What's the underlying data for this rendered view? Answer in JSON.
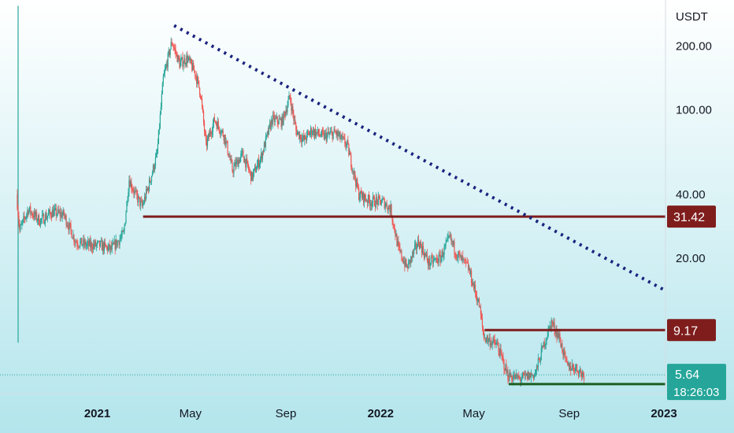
{
  "chart_data": {
    "type": "candlestick",
    "title": "",
    "currency": "USDT",
    "y_scale": "log",
    "ylim": [
      4.6,
      330
    ],
    "xlim": [
      "2020-09-20",
      "2023-01-03"
    ],
    "y_ticks": [
      {
        "value": 200,
        "label": "200.00"
      },
      {
        "value": 100,
        "label": "100.00"
      },
      {
        "value": 40,
        "label": "40.00"
      },
      {
        "value": 20,
        "label": "20.00"
      }
    ],
    "x_ticks": [
      {
        "date": "2021-01-01",
        "label": "2021",
        "bold": true
      },
      {
        "date": "2021-05-01",
        "label": "May",
        "bold": false
      },
      {
        "date": "2021-09-01",
        "label": "Sep",
        "bold": false
      },
      {
        "date": "2022-01-01",
        "label": "2022",
        "bold": true
      },
      {
        "date": "2022-05-01",
        "label": "May",
        "bold": false
      },
      {
        "date": "2022-09-01",
        "label": "Sep",
        "bold": false
      },
      {
        "date": "2023-01-01",
        "label": "2023",
        "bold": true
      }
    ],
    "price_path": [
      [
        "2020-09-20",
        40
      ],
      [
        "2020-09-24",
        27
      ],
      [
        "2020-10-05",
        34
      ],
      [
        "2020-10-20",
        30
      ],
      [
        "2020-11-05",
        33
      ],
      [
        "2020-11-20",
        32
      ],
      [
        "2020-12-05",
        24
      ],
      [
        "2020-12-20",
        23
      ],
      [
        "2021-01-05",
        23
      ],
      [
        "2021-01-20",
        22
      ],
      [
        "2021-02-05",
        26
      ],
      [
        "2021-02-12",
        47
      ],
      [
        "2021-02-20",
        40
      ],
      [
        "2021-03-01",
        35
      ],
      [
        "2021-03-10",
        45
      ],
      [
        "2021-03-20",
        62
      ],
      [
        "2021-03-28",
        140
      ],
      [
        "2021-04-08",
        210
      ],
      [
        "2021-04-18",
        165
      ],
      [
        "2021-04-28",
        175
      ],
      [
        "2021-05-08",
        150
      ],
      [
        "2021-05-15",
        120
      ],
      [
        "2021-05-22",
        68
      ],
      [
        "2021-06-02",
        90
      ],
      [
        "2021-06-15",
        75
      ],
      [
        "2021-06-25",
        52
      ],
      [
        "2021-07-08",
        62
      ],
      [
        "2021-07-20",
        48
      ],
      [
        "2021-08-01",
        60
      ],
      [
        "2021-08-15",
        90
      ],
      [
        "2021-08-28",
        88
      ],
      [
        "2021-09-07",
        115
      ],
      [
        "2021-09-15",
        80
      ],
      [
        "2021-09-25",
        72
      ],
      [
        "2021-10-05",
        80
      ],
      [
        "2021-10-20",
        75
      ],
      [
        "2021-11-05",
        78
      ],
      [
        "2021-11-20",
        68
      ],
      [
        "2021-12-05",
        40
      ],
      [
        "2021-12-20",
        37
      ],
      [
        "2022-01-05",
        37
      ],
      [
        "2022-01-15",
        34
      ],
      [
        "2022-01-25",
        22
      ],
      [
        "2022-02-05",
        18
      ],
      [
        "2022-02-20",
        24
      ],
      [
        "2022-03-05",
        19
      ],
      [
        "2022-03-20",
        20
      ],
      [
        "2022-04-01",
        25
      ],
      [
        "2022-04-10",
        21
      ],
      [
        "2022-04-25",
        18
      ],
      [
        "2022-05-09",
        12
      ],
      [
        "2022-05-15",
        8.5
      ],
      [
        "2022-06-01",
        7.8
      ],
      [
        "2022-06-15",
        5.6
      ],
      [
        "2022-07-01",
        5.4
      ],
      [
        "2022-07-20",
        5.7
      ],
      [
        "2022-08-01",
        8.0
      ],
      [
        "2022-08-10",
        10.0
      ],
      [
        "2022-08-20",
        8.5
      ],
      [
        "2022-08-30",
        6.2
      ],
      [
        "2022-09-10",
        6.1
      ],
      [
        "2022-09-20",
        5.64
      ]
    ],
    "trendline": {
      "from": [
        "2021-04-10",
        250
      ],
      "to": [
        "2023-01-01",
        14.2
      ],
      "style": "dotted",
      "color": "#1a237e"
    },
    "horizontal_levels": [
      {
        "value": 31.42,
        "label": "31.42",
        "from": "2021-03-01",
        "color": "#7f1d1d"
      },
      {
        "value": 9.17,
        "label": "9.17",
        "from": "2022-05-15",
        "color": "#7f1d1d"
      },
      {
        "value": 5.1,
        "from": "2022-06-15",
        "color": "#1b5e20"
      }
    ],
    "current_price": {
      "value": 5.64,
      "label": "5.64",
      "countdown": "18:26:03",
      "color": "#26a69a"
    },
    "colors": {
      "up": "#26a69a",
      "down": "#ef5350",
      "background_top": "#ffffff",
      "background_bottom": "#b3e5ec"
    }
  }
}
